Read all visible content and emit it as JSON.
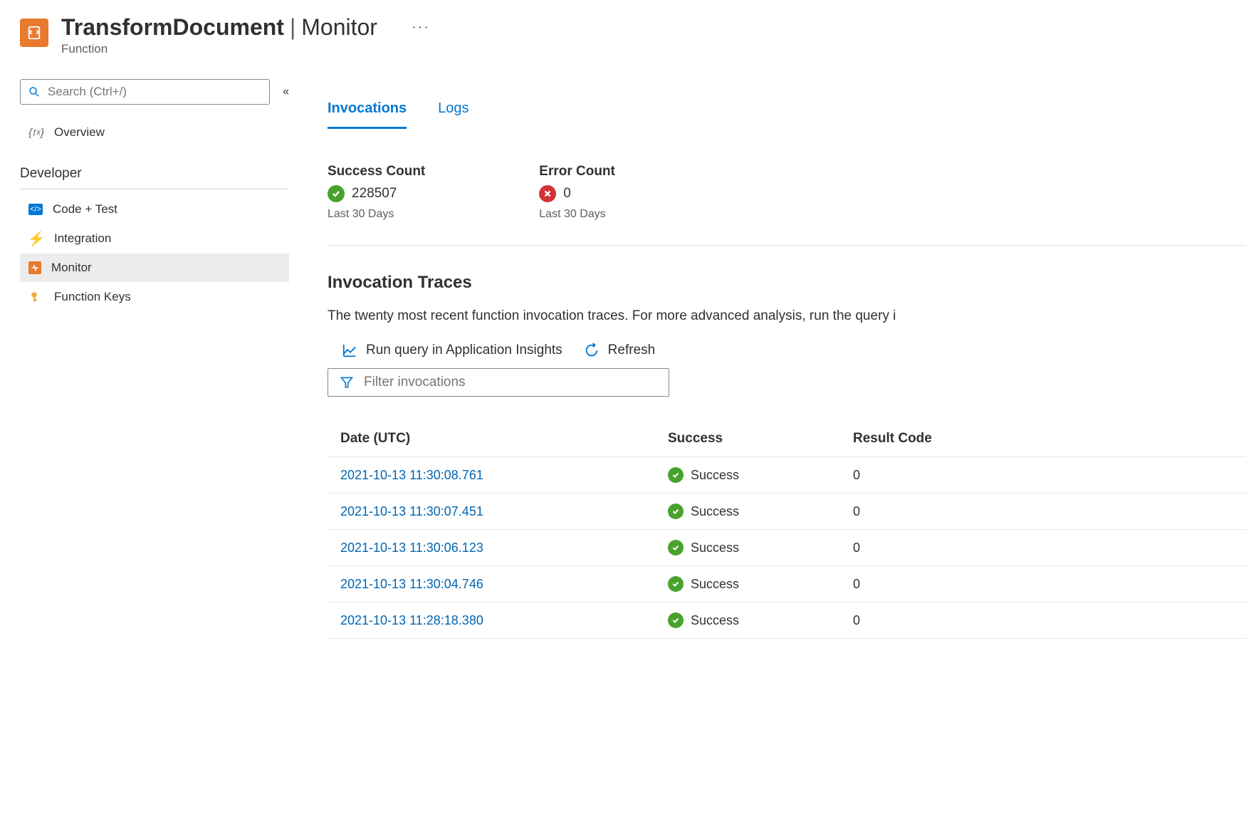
{
  "header": {
    "title_main": "TransformDocument",
    "title_sub": "Monitor",
    "subtitle": "Function"
  },
  "search": {
    "placeholder": "Search (Ctrl+/)"
  },
  "nav": {
    "overview": "Overview",
    "section": "Developer",
    "items": {
      "code_test": "Code + Test",
      "integration": "Integration",
      "monitor": "Monitor",
      "function_keys": "Function Keys"
    }
  },
  "tabs": {
    "invocations": "Invocations",
    "logs": "Logs"
  },
  "stats": {
    "success": {
      "title": "Success Count",
      "value": "228507",
      "period": "Last 30 Days"
    },
    "error": {
      "title": "Error Count",
      "value": "0",
      "period": "Last 30 Days"
    }
  },
  "traces": {
    "title": "Invocation Traces",
    "desc": "The twenty most recent function invocation traces. For more advanced analysis, run the query i",
    "run_query": "Run query in Application Insights",
    "refresh": "Refresh",
    "filter_placeholder": "Filter invocations"
  },
  "table": {
    "columns": {
      "date": "Date (UTC)",
      "success": "Success",
      "result": "Result Code"
    },
    "success_label": "Success",
    "rows": [
      {
        "date": "2021-10-13 11:30:08.761",
        "result": "0"
      },
      {
        "date": "2021-10-13 11:30:07.451",
        "result": "0"
      },
      {
        "date": "2021-10-13 11:30:06.123",
        "result": "0"
      },
      {
        "date": "2021-10-13 11:30:04.746",
        "result": "0"
      },
      {
        "date": "2021-10-13 11:28:18.380",
        "result": "0"
      }
    ]
  },
  "colors": {
    "accent": "#0078d4",
    "success": "#4aa22e",
    "error": "#d13438",
    "app_icon": "#e8792e"
  }
}
